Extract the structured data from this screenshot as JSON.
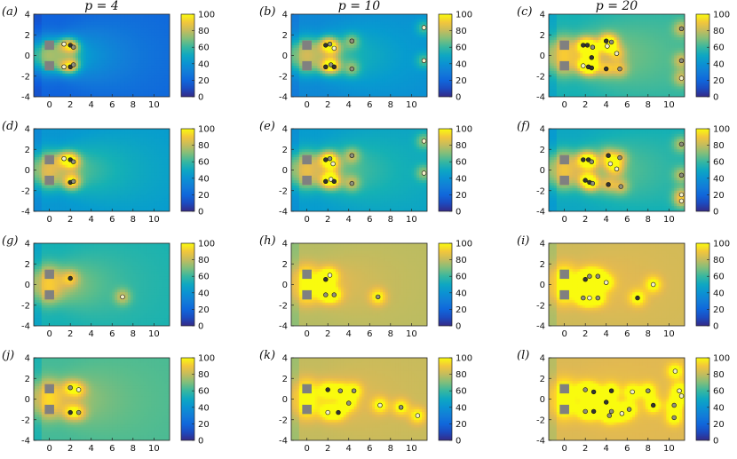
{
  "figure": {
    "column_titles": [
      "p = 4",
      "p = 10",
      "p = 20"
    ]
  },
  "chart_data": {
    "type": "heatmap",
    "x_ticks": [
      0,
      2,
      4,
      6,
      8,
      10
    ],
    "y_ticks": [
      4,
      2,
      0,
      -2,
      -4
    ],
    "x_range": [
      -1.5,
      11.5
    ],
    "y_range": [
      -4,
      4
    ],
    "colorbar_ticks": [
      0,
      20,
      40,
      60,
      80,
      100
    ],
    "colorbar_range": [
      0,
      100
    ],
    "colormap": "parula",
    "obstacles": [
      [
        0,
        1
      ],
      [
        0,
        -1
      ]
    ],
    "panels": [
      {
        "label": "(a)",
        "base": 18,
        "decay": 1.6,
        "points": [
          [
            1.4,
            1.1,
            "w"
          ],
          [
            2,
            1.0,
            "k"
          ],
          [
            2.3,
            0.8,
            "g"
          ],
          [
            1.4,
            -1.1,
            "w"
          ],
          [
            2,
            -1.1,
            "k"
          ],
          [
            2.3,
            -0.9,
            "g"
          ]
        ]
      },
      {
        "label": "(b)",
        "base": 35,
        "decay": 2.2,
        "points": [
          [
            1.8,
            1.0,
            "k"
          ],
          [
            2.2,
            1.1,
            "g"
          ],
          [
            2.6,
            0.7,
            "w"
          ],
          [
            4.3,
            1.4,
            "g"
          ],
          [
            1.8,
            -1.1,
            "k"
          ],
          [
            2.3,
            -0.9,
            "g"
          ],
          [
            2.6,
            -1.1,
            "k"
          ],
          [
            4.3,
            -1.3,
            "g"
          ],
          [
            11.2,
            2.7,
            "w"
          ],
          [
            11.2,
            -0.5,
            "w"
          ]
        ]
      },
      {
        "label": "(c)",
        "base": 55,
        "decay": 2.8,
        "points": [
          [
            1.8,
            1.0,
            "k"
          ],
          [
            2.2,
            1.0,
            "k"
          ],
          [
            2.7,
            0.8,
            "g"
          ],
          [
            4.0,
            1.4,
            "k"
          ],
          [
            4.1,
            0.9,
            "w"
          ],
          [
            4.5,
            1.3,
            "g"
          ],
          [
            5.0,
            0.2,
            "w"
          ],
          [
            2.6,
            -0.2,
            "k"
          ],
          [
            1.8,
            -1.0,
            "w"
          ],
          [
            2.3,
            -1.1,
            "k"
          ],
          [
            2.6,
            -1.2,
            "k"
          ],
          [
            4.0,
            -1.3,
            "k"
          ],
          [
            5.3,
            -1.3,
            "g"
          ],
          [
            11.2,
            2.6,
            "g"
          ],
          [
            11.2,
            -0.5,
            "g"
          ],
          [
            11.2,
            -2.2,
            "w"
          ]
        ]
      },
      {
        "label": "(d)",
        "base": 42,
        "decay": 2.0,
        "points": [
          [
            1.4,
            1.1,
            "w"
          ],
          [
            2.0,
            1.0,
            "k"
          ],
          [
            2.3,
            0.8,
            "g"
          ],
          [
            2.0,
            -1.2,
            "k"
          ],
          [
            2.3,
            -1.1,
            "g"
          ]
        ]
      },
      {
        "label": "(e)",
        "base": 45,
        "decay": 2.3,
        "points": [
          [
            1.8,
            1.0,
            "k"
          ],
          [
            2.2,
            1.1,
            "g"
          ],
          [
            4.3,
            1.4,
            "g"
          ],
          [
            2.5,
            0.6,
            "w"
          ],
          [
            1.8,
            -1.1,
            "k"
          ],
          [
            2.3,
            -0.9,
            "w"
          ],
          [
            2.6,
            -1.1,
            "k"
          ],
          [
            4.3,
            -1.3,
            "g"
          ],
          [
            11.2,
            2.8,
            "w"
          ],
          [
            11.2,
            -0.3,
            "w"
          ]
        ]
      },
      {
        "label": "(f)",
        "base": 50,
        "decay": 2.6,
        "points": [
          [
            1.8,
            1.0,
            "k"
          ],
          [
            2.3,
            1.0,
            "k"
          ],
          [
            2.6,
            0.8,
            "g"
          ],
          [
            4.2,
            1.4,
            "k"
          ],
          [
            5.3,
            1.2,
            "g"
          ],
          [
            4.4,
            0.6,
            "w"
          ],
          [
            5.0,
            0.1,
            "w"
          ],
          [
            2.0,
            -1.0,
            "k"
          ],
          [
            2.4,
            -1.2,
            "k"
          ],
          [
            2.7,
            -1.3,
            "g"
          ],
          [
            4.2,
            -1.4,
            "k"
          ],
          [
            5.4,
            -1.6,
            "g"
          ],
          [
            11.2,
            2.5,
            "g"
          ],
          [
            11.2,
            -0.5,
            "g"
          ],
          [
            11.2,
            -2.4,
            "w"
          ],
          [
            11.2,
            -3.0,
            "w"
          ]
        ]
      },
      {
        "label": "(g)",
        "base": 55,
        "decay": 1.3,
        "points": [
          [
            2.0,
            0.6,
            "k"
          ],
          [
            7.0,
            -1.2,
            "w"
          ]
        ]
      },
      {
        "label": "(h)",
        "base": 78,
        "decay": 1.5,
        "points": [
          [
            1.8,
            0.5,
            "k"
          ],
          [
            2.2,
            0.9,
            "w"
          ],
          [
            1.8,
            -1.0,
            "g"
          ],
          [
            2.6,
            -1.0,
            "g"
          ],
          [
            6.8,
            -1.2,
            "g"
          ]
        ]
      },
      {
        "label": "(i)",
        "base": 82,
        "decay": 1.5,
        "points": [
          [
            2.0,
            0.5,
            "k"
          ],
          [
            2.4,
            0.8,
            "g"
          ],
          [
            3.2,
            0.8,
            "g"
          ],
          [
            4.0,
            0.2,
            "w"
          ],
          [
            8.5,
            0.0,
            "w"
          ],
          [
            1.8,
            -1.3,
            "g"
          ],
          [
            2.4,
            -1.3,
            "w"
          ],
          [
            3.2,
            -1.3,
            "g"
          ],
          [
            7.0,
            -1.3,
            "k"
          ]
        ]
      },
      {
        "label": "(j)",
        "base": 62,
        "decay": 1.4,
        "points": [
          [
            2.0,
            1.1,
            "g"
          ],
          [
            2.8,
            0.9,
            "w"
          ],
          [
            2.0,
            -1.3,
            "k"
          ],
          [
            2.8,
            -1.3,
            "g"
          ]
        ]
      },
      {
        "label": "(k)",
        "base": 80,
        "decay": 1.6,
        "points": [
          [
            2.0,
            0.9,
            "k"
          ],
          [
            3.2,
            0.8,
            "g"
          ],
          [
            4.5,
            0.8,
            "g"
          ],
          [
            4.0,
            -0.4,
            "g"
          ],
          [
            2.0,
            -1.3,
            "w"
          ],
          [
            3.0,
            -1.3,
            "k"
          ],
          [
            7.0,
            -0.6,
            "w"
          ],
          [
            9.0,
            -0.8,
            "g"
          ],
          [
            10.6,
            -1.6,
            "w"
          ]
        ]
      },
      {
        "label": "(l)",
        "base": 84,
        "decay": 1.6,
        "points": [
          [
            2.0,
            0.9,
            "g"
          ],
          [
            2.8,
            0.7,
            "k"
          ],
          [
            4.5,
            0.8,
            "k"
          ],
          [
            6.5,
            0.7,
            "w"
          ],
          [
            8.0,
            0.8,
            "g"
          ],
          [
            10.6,
            2.7,
            "w"
          ],
          [
            11.0,
            0.8,
            "w"
          ],
          [
            11.2,
            0.3,
            "w"
          ],
          [
            2.0,
            -1.2,
            "g"
          ],
          [
            2.8,
            -1.2,
            "k"
          ],
          [
            4.0,
            -0.3,
            "k"
          ],
          [
            4.5,
            -1.2,
            "g"
          ],
          [
            6.2,
            -1.0,
            "g"
          ],
          [
            8.5,
            -0.6,
            "k"
          ],
          [
            10.5,
            -0.6,
            "g"
          ],
          [
            4.3,
            -1.6,
            "g"
          ],
          [
            5.5,
            -1.4,
            "w"
          ],
          [
            10.5,
            -1.8,
            "g"
          ]
        ]
      }
    ]
  }
}
